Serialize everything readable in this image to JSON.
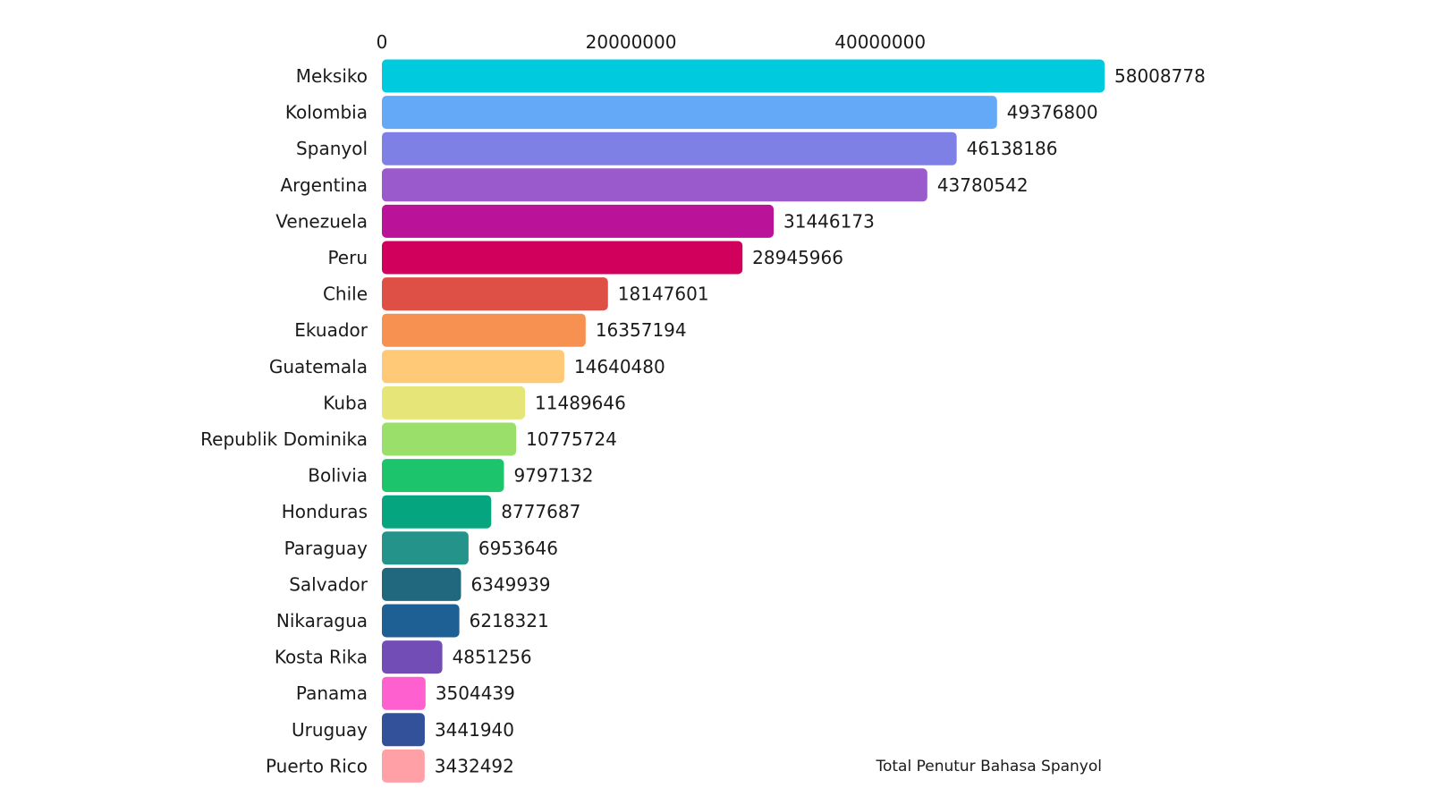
{
  "chart_data": {
    "type": "bar",
    "orientation": "horizontal",
    "caption": "Total Penutur Bahasa Spanyol",
    "xlim": [
      0,
      58008778
    ],
    "x_ticks": [
      0,
      20000000,
      40000000
    ],
    "x_tick_labels": [
      "0",
      "20000000",
      "40000000"
    ],
    "axis_position": "top",
    "grid": false,
    "categories": [
      "Meksiko",
      "Kolombia",
      "Spanyol",
      "Argentina",
      "Venezuela",
      "Peru",
      "Chile",
      "Ekuador",
      "Guatemala",
      "Kuba",
      "Republik Dominika",
      "Bolivia",
      "Honduras",
      "Paraguay",
      "Salvador",
      "Nikaragua",
      "Kosta Rika",
      "Panama",
      "Uruguay",
      "Puerto Rico"
    ],
    "values": [
      58008778,
      49376800,
      46138186,
      43780542,
      31446173,
      28945966,
      18147601,
      16357194,
      14640480,
      11489646,
      10775724,
      9797132,
      8777687,
      6953646,
      6349939,
      6218321,
      4851256,
      3504439,
      3441940,
      3432492
    ],
    "value_labels": [
      "58008778",
      "49376800",
      "46138186",
      "43780542",
      "31446173",
      "28945966",
      "18147601",
      "16357194",
      "14640480",
      "11489646",
      "10775724",
      "9797132",
      "8777687",
      "6953646",
      "6349939",
      "6218321",
      "4851256",
      "3504439",
      "3441940",
      "3432492"
    ],
    "colors": [
      "#00CBDE",
      "#64A8F8",
      "#7F80E6",
      "#9B5ACB",
      "#BA139A",
      "#D0005C",
      "#DE5045",
      "#F69151",
      "#FFC978",
      "#E5E677",
      "#9ADF6A",
      "#1CC46C",
      "#05A67F",
      "#24938A",
      "#21677E",
      "#1E6094",
      "#714DB5",
      "#FF60CF",
      "#32519A",
      "#FF9FA6"
    ]
  }
}
